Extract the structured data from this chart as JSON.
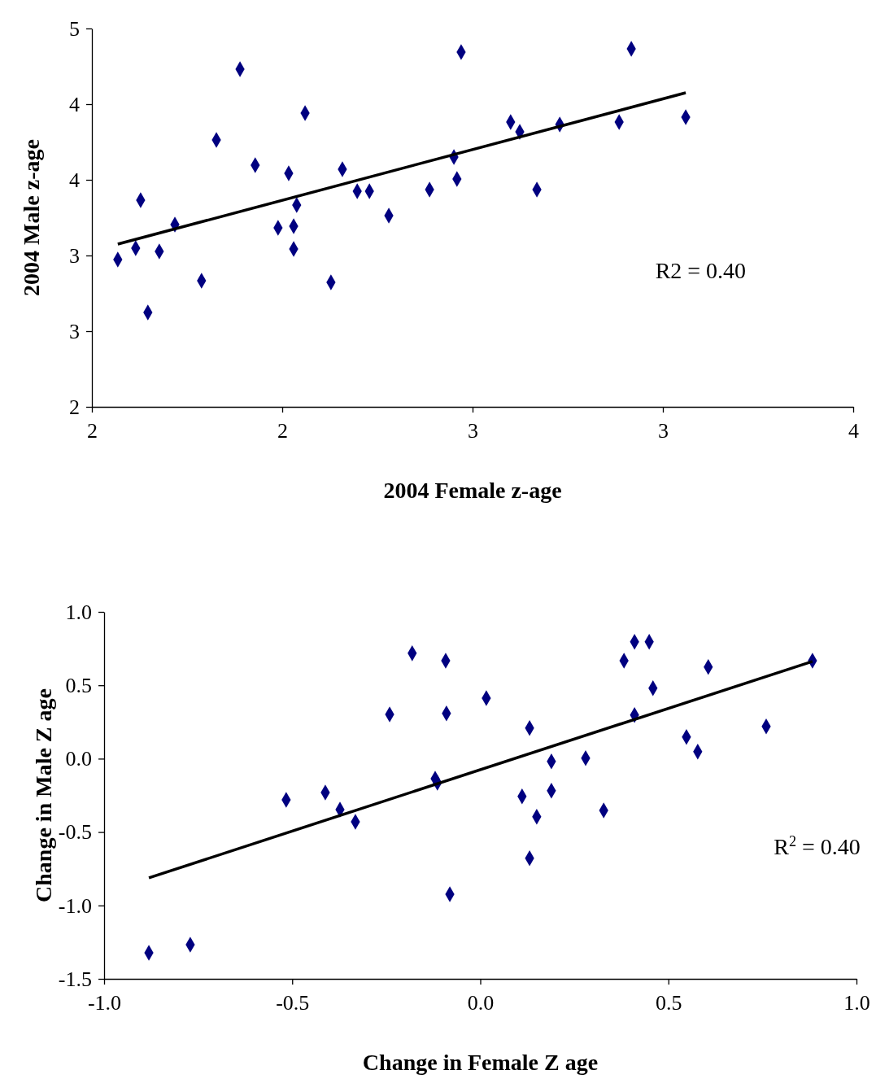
{
  "chart_data": [
    {
      "type": "scatter",
      "xlabel": "2004 Female z-age",
      "ylabel": "2004 Male z-age",
      "xlim": [
        1.5,
        3.5
      ],
      "xticks": [
        {
          "value": 1.5,
          "label": "2"
        },
        {
          "value": 2.0,
          "label": "2"
        },
        {
          "value": 2.5,
          "label": "3"
        },
        {
          "value": 3.0,
          "label": "3"
        },
        {
          "value": 3.5,
          "label": "4"
        }
      ],
      "ylim": [
        2.0,
        4.5
      ],
      "yticks": [
        {
          "value": 2.0,
          "label": "2"
        },
        {
          "value": 2.5,
          "label": "3"
        },
        {
          "value": 3.0,
          "label": "3"
        },
        {
          "value": 3.5,
          "label": "4"
        },
        {
          "value": 4.0,
          "label": "4"
        },
        {
          "value": 4.5,
          "label": "5"
        }
      ],
      "annotations": [
        "R2 = 0.40"
      ],
      "series": [
        {
          "color": "#000080",
          "marker": "diamond",
          "x": [
            1.568,
            1.615,
            1.628,
            1.647,
            1.677,
            1.718,
            1.788,
            1.827,
            1.889,
            1.929,
            1.989,
            2.017,
            2.03,
            2.03,
            2.038,
            2.06,
            2.128,
            2.158,
            2.197,
            2.229,
            2.28,
            2.387,
            2.451,
            2.459,
            2.47,
            2.6,
            2.624,
            2.669,
            2.729,
            2.885,
            2.917,
            3.06
          ],
          "values": [
            2.973,
            3.048,
            3.366,
            2.624,
            3.027,
            3.204,
            2.833,
            3.763,
            4.231,
            3.597,
            3.183,
            3.543,
            3.194,
            3.043,
            3.333,
            3.941,
            2.823,
            3.57,
            3.425,
            3.425,
            3.263,
            3.435,
            3.651,
            3.505,
            4.344,
            3.882,
            3.817,
            3.435,
            3.866,
            3.882,
            4.366,
            3.914
          ]
        },
        {
          "type": "line",
          "marker": "none",
          "color": "#000000",
          "x": [
            1.568,
            3.06
          ],
          "values": [
            3.075,
            4.075
          ]
        }
      ]
    },
    {
      "type": "scatter",
      "xlabel": "Change in Female Z age",
      "ylabel": "Change in Male Z age",
      "xlim": [
        -1.0,
        1.0
      ],
      "xticks": [
        {
          "value": -1.0,
          "label": "-1.0"
        },
        {
          "value": -0.5,
          "label": "-0.5"
        },
        {
          "value": 0,
          "label": "0.0"
        },
        {
          "value": 0.5,
          "label": "0.5"
        },
        {
          "value": 1.0,
          "label": "1.0"
        }
      ],
      "ylim": [
        -1.5,
        1.0
      ],
      "yticks": [
        {
          "value": -1.5,
          "label": "-1.5"
        },
        {
          "value": -1.0,
          "label": "-1.0"
        },
        {
          "value": -0.5,
          "label": "-0.5"
        },
        {
          "value": 0,
          "label": "0.0"
        },
        {
          "value": 0.5,
          "label": "0.5"
        },
        {
          "value": 1.0,
          "label": "1.0"
        }
      ],
      "annotations": [
        "R$^{2}$ = 0.40"
      ],
      "series": [
        {
          "color": "#000080",
          "marker": "diamond",
          "x": [
            -0.881,
            -0.771,
            -0.516,
            -0.412,
            -0.373,
            -0.332,
            -0.241,
            -0.181,
            -0.12,
            -0.114,
            -0.092,
            -0.09,
            -0.081,
            0.016,
            0.111,
            0.131,
            0.131,
            0.15,
            0.189,
            0.189,
            0.28,
            0.328,
            0.382,
            0.41,
            0.41,
            0.449,
            0.459,
            0.548,
            0.578,
            0.606,
            0.76,
            0.883
          ],
          "values": [
            -1.323,
            -1.267,
            -0.281,
            -0.231,
            -0.347,
            -0.43,
            0.302,
            0.718,
            -0.136,
            -0.164,
            0.668,
            0.308,
            -0.923,
            0.413,
            -0.257,
            0.209,
            -0.678,
            -0.396,
            -0.019,
            -0.218,
            0.003,
            -0.352,
            0.668,
            0.796,
            0.297,
            0.796,
            0.48,
            0.148,
            0.048,
            0.625,
            0.22,
            0.668
          ]
        },
        {
          "type": "line",
          "marker": "none",
          "color": "#000000",
          "x": [
            -0.881,
            0.883
          ],
          "values": [
            -0.812,
            0.663
          ]
        }
      ]
    }
  ]
}
